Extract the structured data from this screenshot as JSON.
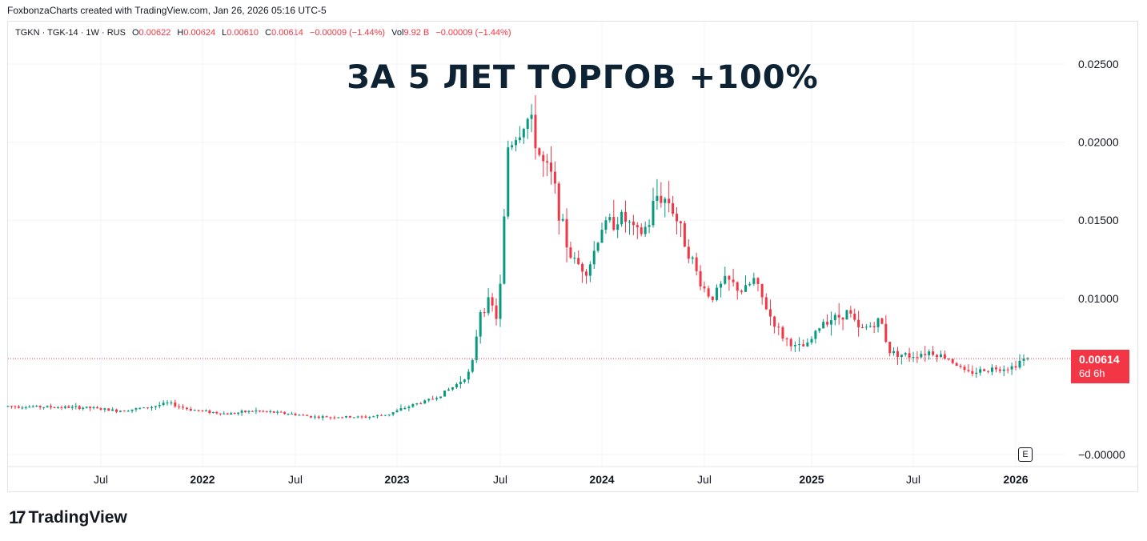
{
  "credit": "FoxbonzaCharts created with TradingView.com, Jan 26, 2026 05:16 UTC-5",
  "legend": {
    "symbol": "TGKN · TGK-14 · 1W · RUS",
    "o_label": "O",
    "o_value": "0.00622",
    "h_label": "H",
    "h_value": "0.00624",
    "l_label": "L",
    "l_value": "0.00610",
    "c_label": "C",
    "c_value": "0.00614",
    "change": "−0.00009 (−1.44%)",
    "vol_label": "Vol",
    "vol_value": "9.92 B",
    "vol_change": "−0.00009 (−1.44%)"
  },
  "headline": "ЗА 5 ЛЕТ ТОРГОВ +100%",
  "price_badge": {
    "price": "0.00614",
    "countdown": "6d 6h",
    "color": "#f23645"
  },
  "earnings_marker": "E",
  "brand": {
    "name": "TradingView",
    "mark": "17"
  },
  "colors": {
    "up": "#089981",
    "down": "#f23645",
    "grid": "#f0f3fa",
    "text": "#131722"
  },
  "chart_data": {
    "type": "candlestick",
    "interval": "1W",
    "y_ticks": [
      "0.02500",
      "0.02000",
      "0.01500",
      "0.01000",
      "−0.00000"
    ],
    "y_tick_values": [
      0.025,
      0.02,
      0.015,
      0.01,
      0.0
    ],
    "ylim": [
      -0.0001,
      0.026
    ],
    "x_ticks": [
      {
        "label": "Jul",
        "bold": false,
        "t": 2021.5
      },
      {
        "label": "2022",
        "bold": true,
        "t": 2022.0
      },
      {
        "label": "Jul",
        "bold": false,
        "t": 2022.5
      },
      {
        "label": "2023",
        "bold": true,
        "t": 2023.0
      },
      {
        "label": "Jul",
        "bold": false,
        "t": 2023.5
      },
      {
        "label": "2024",
        "bold": true,
        "t": 2024.0
      },
      {
        "label": "Jul",
        "bold": false,
        "t": 2024.5
      },
      {
        "label": "2025",
        "bold": true,
        "t": 2025.0
      },
      {
        "label": "Jul",
        "bold": false,
        "t": 2025.5
      },
      {
        "label": "2026",
        "bold": true,
        "t": 2026.0
      }
    ],
    "last_price": 0.00614,
    "price_keypoints": [
      [
        2021.0,
        0.0031
      ],
      [
        2021.45,
        0.003
      ],
      [
        2021.6,
        0.0028
      ],
      [
        2021.75,
        0.003
      ],
      [
        2021.85,
        0.0033
      ],
      [
        2021.95,
        0.0029
      ],
      [
        2022.08,
        0.0027
      ],
      [
        2022.15,
        0.0026
      ],
      [
        2022.3,
        0.0028
      ],
      [
        2022.5,
        0.0026
      ],
      [
        2022.62,
        0.0024
      ],
      [
        2022.75,
        0.0024
      ],
      [
        2022.88,
        0.0024
      ],
      [
        2022.98,
        0.0026
      ],
      [
        2023.1,
        0.0032
      ],
      [
        2023.2,
        0.0036
      ],
      [
        2023.3,
        0.0044
      ],
      [
        2023.38,
        0.0054
      ],
      [
        2023.42,
        0.0092
      ],
      [
        2023.47,
        0.0098
      ],
      [
        2023.5,
        0.0088
      ],
      [
        2023.53,
        0.0118
      ],
      [
        2023.55,
        0.0196
      ],
      [
        2023.62,
        0.0208
      ],
      [
        2023.66,
        0.0216
      ],
      [
        2023.72,
        0.0188
      ],
      [
        2023.78,
        0.0176
      ],
      [
        2023.82,
        0.0148
      ],
      [
        2023.86,
        0.0128
      ],
      [
        2023.9,
        0.0122
      ],
      [
        2023.95,
        0.0118
      ],
      [
        2024.02,
        0.0146
      ],
      [
        2024.12,
        0.0152
      ],
      [
        2024.2,
        0.014
      ],
      [
        2024.25,
        0.0148
      ],
      [
        2024.28,
        0.0166
      ],
      [
        2024.35,
        0.0162
      ],
      [
        2024.42,
        0.0138
      ],
      [
        2024.5,
        0.011
      ],
      [
        2024.55,
        0.01
      ],
      [
        2024.62,
        0.0112
      ],
      [
        2024.7,
        0.0104
      ],
      [
        2024.75,
        0.0112
      ],
      [
        2024.82,
        0.009
      ],
      [
        2024.88,
        0.0076
      ],
      [
        2024.95,
        0.0068
      ],
      [
        2025.0,
        0.007
      ],
      [
        2025.08,
        0.0086
      ],
      [
        2025.15,
        0.0088
      ],
      [
        2025.2,
        0.0092
      ],
      [
        2025.25,
        0.008
      ],
      [
        2025.3,
        0.0082
      ],
      [
        2025.36,
        0.0086
      ],
      [
        2025.4,
        0.0066
      ],
      [
        2025.5,
        0.0063
      ],
      [
        2025.6,
        0.0066
      ],
      [
        2025.7,
        0.0061
      ],
      [
        2025.78,
        0.0052
      ],
      [
        2025.9,
        0.0055
      ],
      [
        2026.0,
        0.0056
      ],
      [
        2026.05,
        0.0061
      ]
    ]
  }
}
